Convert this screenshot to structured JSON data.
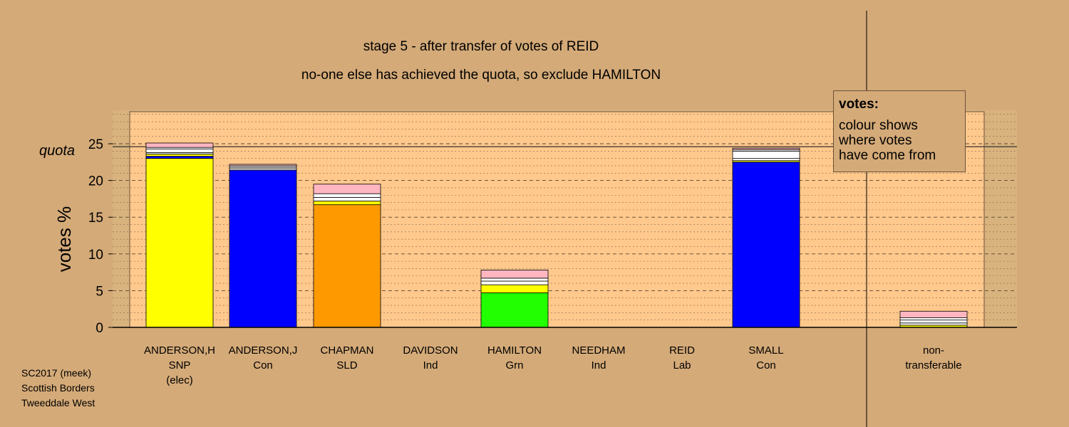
{
  "chart_data": {
    "type": "bar",
    "stacked": true,
    "title": "stage 5 - after transfer of votes of REID",
    "subtitle": "no-one else has achieved the quota, so exclude HAMILTON",
    "ylabel": "votes %",
    "ylim": [
      0,
      30
    ],
    "yticks": [
      0,
      5,
      10,
      15,
      20,
      25
    ],
    "quota": 24.6,
    "quota_label": "quota",
    "grid": true,
    "categories": [
      {
        "name": "ANDERSON,H",
        "party": "SNP",
        "note": "(elec)"
      },
      {
        "name": "ANDERSON,J",
        "party": "Con",
        "note": ""
      },
      {
        "name": "CHAPMAN",
        "party": "SLD",
        "note": ""
      },
      {
        "name": "DAVIDSON",
        "party": "Ind",
        "note": ""
      },
      {
        "name": "HAMILTON",
        "party": "Grn",
        "note": ""
      },
      {
        "name": "NEEDHAM",
        "party": "Ind",
        "note": ""
      },
      {
        "name": "REID",
        "party": "Lab",
        "note": ""
      },
      {
        "name": "SMALL",
        "party": "Con",
        "note": ""
      },
      {
        "name": "non-",
        "party": "transferable",
        "note": ""
      }
    ],
    "stacks": [
      [
        {
          "v": 23.0,
          "c": "#ffff00"
        },
        {
          "v": 0.3,
          "c": "#0000ff"
        },
        {
          "v": 0.3,
          "c": "#ffff00"
        },
        {
          "v": 0.2,
          "c": "#ffffff"
        },
        {
          "v": 0.5,
          "c": "#ffffff"
        },
        {
          "v": 0.2,
          "c": "#ffffff"
        },
        {
          "v": 0.6,
          "c": "#ffb6c1"
        }
      ],
      [
        {
          "v": 21.4,
          "c": "#0000ff"
        },
        {
          "v": 0.2,
          "c": "#ffffff"
        },
        {
          "v": 0.2,
          "c": "#ffffff"
        },
        {
          "v": 0.2,
          "c": "#ffffff"
        },
        {
          "v": 0.2,
          "c": "#ffb6c1"
        }
      ],
      [
        {
          "v": 16.7,
          "c": "#ff9900"
        },
        {
          "v": 0.5,
          "c": "#ffff00"
        },
        {
          "v": 0.5,
          "c": "#ffffff"
        },
        {
          "v": 0.5,
          "c": "#ffffff"
        },
        {
          "v": 1.3,
          "c": "#ffb6c1"
        }
      ],
      [],
      [
        {
          "v": 4.7,
          "c": "#22ff00"
        },
        {
          "v": 1.1,
          "c": "#ffff00"
        },
        {
          "v": 0.5,
          "c": "#ffffff"
        },
        {
          "v": 0.4,
          "c": "#ffffff"
        },
        {
          "v": 1.1,
          "c": "#ffb6c1"
        }
      ],
      [],
      [],
      [
        {
          "v": 22.5,
          "c": "#0000ff"
        },
        {
          "v": 0.2,
          "c": "#ffff00"
        },
        {
          "v": 0.3,
          "c": "#ffffff"
        },
        {
          "v": 1.0,
          "c": "#ffffff"
        },
        {
          "v": 0.2,
          "c": "#ffffff"
        },
        {
          "v": 0.2,
          "c": "#ffb6c1"
        }
      ],
      [
        {
          "v": 0.3,
          "c": "#ffff00"
        },
        {
          "v": 0.3,
          "c": "#ffffff"
        },
        {
          "v": 0.4,
          "c": "#ffffff"
        },
        {
          "v": 0.3,
          "c": "#ffffff"
        },
        {
          "v": 0.9,
          "c": "#ffb6c1"
        }
      ]
    ]
  },
  "legend": {
    "title": "votes:",
    "text": "colour shows\nwhere votes\nhave come from"
  },
  "footer": {
    "line1": "SC2017 (meek)",
    "line2": "Scottish Borders",
    "line3": "Tweeddale West"
  },
  "colors": {
    "background": "#d4aa78",
    "plot_area": "#ffc88c"
  }
}
